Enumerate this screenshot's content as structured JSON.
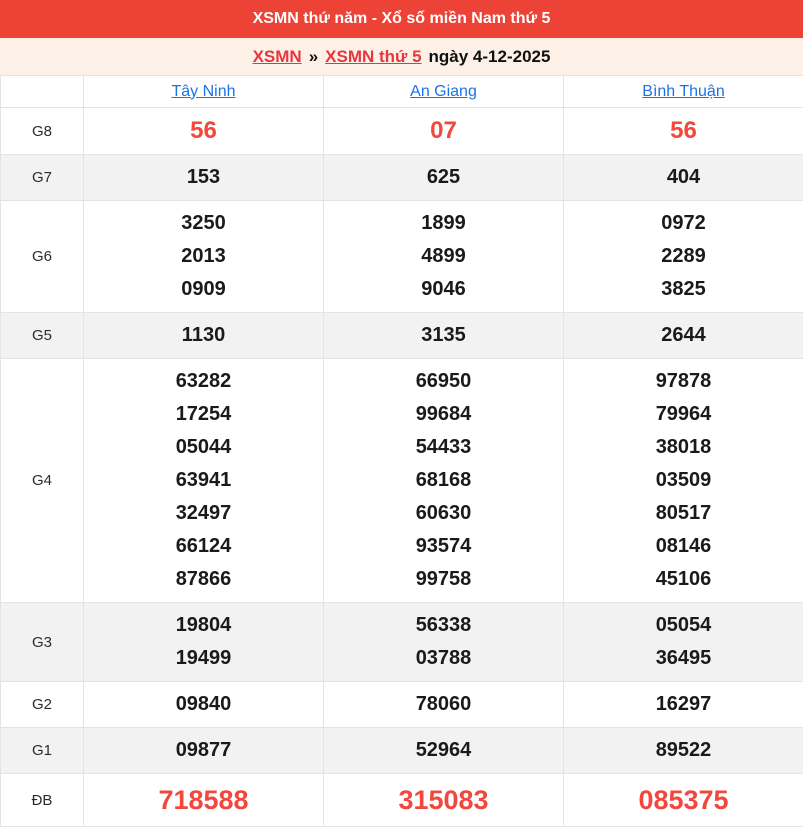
{
  "header": {
    "title": "XSMN thứ năm - Xổ số miền Nam thứ 5"
  },
  "breadcrumb": {
    "link_region": "XSMN",
    "separator": "»",
    "link_day": "XSMN thứ 5",
    "date_text": "ngày 4-12-2025"
  },
  "table": {
    "provinces": [
      "Tây Ninh",
      "An Giang",
      "Bình Thuận"
    ],
    "rows": [
      {
        "label": "G8",
        "highlight": "red",
        "values": [
          [
            "56"
          ],
          [
            "07"
          ],
          [
            "56"
          ]
        ]
      },
      {
        "label": "G7",
        "highlight": "none",
        "values": [
          [
            "153"
          ],
          [
            "625"
          ],
          [
            "404"
          ]
        ]
      },
      {
        "label": "G6",
        "highlight": "none",
        "values": [
          [
            "3250",
            "2013",
            "0909"
          ],
          [
            "1899",
            "4899",
            "9046"
          ],
          [
            "0972",
            "2289",
            "3825"
          ]
        ]
      },
      {
        "label": "G5",
        "highlight": "none",
        "values": [
          [
            "1130"
          ],
          [
            "3135"
          ],
          [
            "2644"
          ]
        ]
      },
      {
        "label": "G4",
        "highlight": "none",
        "values": [
          [
            "63282",
            "17254",
            "05044",
            "63941",
            "32497",
            "66124",
            "87866"
          ],
          [
            "66950",
            "99684",
            "54433",
            "68168",
            "60630",
            "93574",
            "99758"
          ],
          [
            "97878",
            "79964",
            "38018",
            "03509",
            "80517",
            "08146",
            "45106"
          ]
        ]
      },
      {
        "label": "G3",
        "highlight": "none",
        "values": [
          [
            "19804",
            "19499"
          ],
          [
            "56338",
            "03788"
          ],
          [
            "05054",
            "36495"
          ]
        ]
      },
      {
        "label": "G2",
        "highlight": "none",
        "values": [
          [
            "09840"
          ],
          [
            "78060"
          ],
          [
            "16297"
          ]
        ]
      },
      {
        "label": "G1",
        "highlight": "none",
        "values": [
          [
            "09877"
          ],
          [
            "52964"
          ],
          [
            "89522"
          ]
        ]
      },
      {
        "label": "ĐB",
        "highlight": "red-large",
        "values": [
          [
            "718588"
          ],
          [
            "315083"
          ],
          [
            "085375"
          ]
        ]
      }
    ]
  },
  "colors": {
    "title_bar_bg": "#ed4337",
    "breadcrumb_bg": "#fdf0e6",
    "red_link": "#e8353f",
    "blue_link": "#1a73e8",
    "red_number": "#f2473d",
    "alt_row_bg": "#f2f2f2",
    "border": "#e4e4e4"
  }
}
